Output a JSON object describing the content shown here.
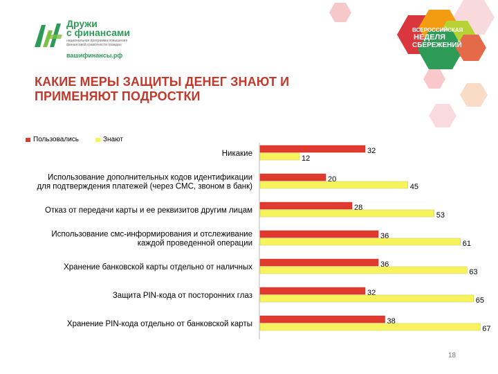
{
  "logo": {
    "name_line1": "Дружи",
    "name_line2": "с финансами",
    "tagline": "национальная программа повышения финансовой грамотности граждан",
    "site": "вашифинансы.рф",
    "colors": {
      "primary": "#2e9a57",
      "accent": "#7bc142"
    }
  },
  "badge": {
    "line1": "ВСЕРОССИЙСКАЯ",
    "line2": "НЕДЕЛЯ",
    "line3": "СБЕРЕЖЕНИЙ",
    "colors": {
      "red": "#d9363e",
      "orange": "#f39c12",
      "green": "#2e9a57",
      "lime": "#b5d334"
    }
  },
  "slide": {
    "title_line1": "КАКИЕ МЕРЫ  ЗАЩИТЫ ДЕНЕГ ЗНАЮТ И",
    "title_line2": "ПРИМЕНЯЮТ ПОДРОСТКИ",
    "page_number": "18"
  },
  "chart_data": {
    "type": "bar",
    "orientation": "horizontal",
    "categories": [
      [
        "Никакие"
      ],
      [
        "Использование дополнительных кодов идентификации",
        "для подтверждения платежей (через СМС, звоном в банк)"
      ],
      [
        "Отказ от передачи карты и ее реквизитов другим лицам"
      ],
      [
        "Использование смс-информирования и отслеживание",
        "каждой проведенной операции"
      ],
      [
        "Хранение банковской карты отдельно от наличных"
      ],
      [
        "Защита PIN-кода от посторонних глаз"
      ],
      [
        "Хранение PIN-кода отдельно от банковской карты"
      ]
    ],
    "series": [
      {
        "name": "Пользовались",
        "color": "#e03a2e",
        "values": [
          32,
          20,
          28,
          36,
          36,
          32,
          38
        ]
      },
      {
        "name": "Знают",
        "color": "#f7f35c",
        "values": [
          12,
          45,
          53,
          61,
          63,
          65,
          67
        ]
      }
    ],
    "xlim": [
      0,
      70
    ],
    "legend": "top-left",
    "grid": false
  }
}
